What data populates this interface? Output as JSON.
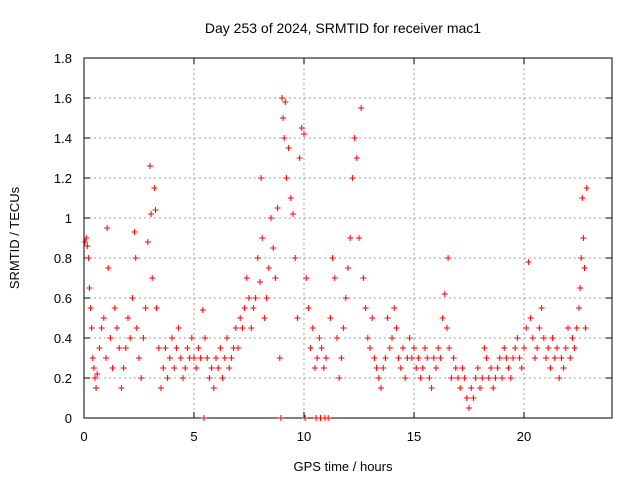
{
  "chart_data": {
    "type": "scatter",
    "title": "Day 253 of 2024, SRMTID for receiver mac1",
    "xlabel": "GPS time / hours",
    "ylabel": "SRMTID / TECUs",
    "xlim": [
      0,
      24
    ],
    "ylim": [
      0,
      1.8
    ],
    "x_ticks": [
      0,
      5,
      10,
      15,
      20
    ],
    "x_tick_labels": [
      "0",
      "5",
      "10",
      "15",
      "20"
    ],
    "y_ticks": [
      0,
      0.2,
      0.4,
      0.6,
      0.8,
      1.0,
      1.2,
      1.4,
      1.6,
      1.8
    ],
    "y_tick_labels": [
      "0",
      "0.2",
      "0.4",
      "0.6",
      "0.8",
      "1",
      "1.2",
      "1.4",
      "1.6",
      "1.8"
    ],
    "grid": true,
    "marker": "+",
    "marker_color": "#ff0000",
    "series": [
      {
        "name": "SRMTID",
        "points": [
          [
            0.05,
            0.88
          ],
          [
            0.1,
            0.9
          ],
          [
            0.15,
            0.86
          ],
          [
            0.2,
            0.8
          ],
          [
            0.25,
            0.65
          ],
          [
            0.3,
            0.55
          ],
          [
            0.35,
            0.45
          ],
          [
            0.4,
            0.3
          ],
          [
            0.45,
            0.25
          ],
          [
            0.5,
            0.2
          ],
          [
            0.55,
            0.15
          ],
          [
            0.6,
            0.22
          ],
          [
            0.7,
            0.35
          ],
          [
            0.8,
            0.45
          ],
          [
            0.9,
            0.5
          ],
          [
            1.0,
            0.3
          ],
          [
            1.05,
            0.95
          ],
          [
            1.1,
            0.75
          ],
          [
            1.2,
            0.4
          ],
          [
            1.3,
            0.25
          ],
          [
            1.4,
            0.55
          ],
          [
            1.5,
            0.45
          ],
          [
            1.6,
            0.35
          ],
          [
            1.7,
            0.15
          ],
          [
            1.8,
            0.25
          ],
          [
            1.9,
            0.35
          ],
          [
            2.0,
            0.5
          ],
          [
            2.1,
            0.4
          ],
          [
            2.2,
            0.6
          ],
          [
            2.3,
            0.93
          ],
          [
            2.35,
            0.8
          ],
          [
            2.4,
            0.45
          ],
          [
            2.5,
            0.3
          ],
          [
            2.6,
            0.2
          ],
          [
            2.7,
            0.4
          ],
          [
            2.8,
            0.55
          ],
          [
            2.9,
            0.88
          ],
          [
            3.0,
            1.26
          ],
          [
            3.05,
            1.02
          ],
          [
            3.1,
            0.7
          ],
          [
            3.2,
            1.15
          ],
          [
            3.25,
            1.04
          ],
          [
            3.3,
            0.55
          ],
          [
            3.4,
            0.35
          ],
          [
            3.5,
            0.15
          ],
          [
            3.6,
            0.25
          ],
          [
            3.7,
            0.35
          ],
          [
            3.8,
            0.2
          ],
          [
            3.9,
            0.3
          ],
          [
            4.0,
            0.4
          ],
          [
            4.1,
            0.25
          ],
          [
            4.2,
            0.35
          ],
          [
            4.3,
            0.45
          ],
          [
            4.4,
            0.3
          ],
          [
            4.5,
            0.2
          ],
          [
            4.6,
            0.25
          ],
          [
            4.7,
            0.35
          ],
          [
            4.8,
            0.3
          ],
          [
            4.9,
            0.4
          ],
          [
            5.0,
            0.3
          ],
          [
            5.1,
            0.25
          ],
          [
            5.2,
            0.35
          ],
          [
            5.3,
            0.3
          ],
          [
            5.4,
            0.54
          ],
          [
            5.45,
            0.0
          ],
          [
            5.5,
            0.4
          ],
          [
            5.6,
            0.3
          ],
          [
            5.7,
            0.2
          ],
          [
            5.8,
            0.25
          ],
          [
            5.9,
            0.15
          ],
          [
            6.0,
            0.3
          ],
          [
            6.1,
            0.25
          ],
          [
            6.2,
            0.35
          ],
          [
            6.3,
            0.2
          ],
          [
            6.4,
            0.3
          ],
          [
            6.5,
            0.4
          ],
          [
            6.6,
            0.25
          ],
          [
            6.7,
            0.3
          ],
          [
            6.8,
            0.35
          ],
          [
            6.9,
            0.45
          ],
          [
            7.0,
            0.35
          ],
          [
            7.1,
            0.5
          ],
          [
            7.2,
            0.45
          ],
          [
            7.3,
            0.55
          ],
          [
            7.4,
            0.7
          ],
          [
            7.5,
            0.6
          ],
          [
            7.6,
            0.45
          ],
          [
            7.7,
            0.55
          ],
          [
            7.8,
            0.6
          ],
          [
            7.9,
            0.8
          ],
          [
            8.0,
            0.68
          ],
          [
            8.05,
            1.2
          ],
          [
            8.1,
            0.9
          ],
          [
            8.2,
            0.5
          ],
          [
            8.3,
            0.6
          ],
          [
            8.4,
            0.75
          ],
          [
            8.5,
            1.0
          ],
          [
            8.6,
            0.85
          ],
          [
            8.7,
            0.7
          ],
          [
            8.8,
            1.05
          ],
          [
            8.9,
            0.3
          ],
          [
            8.95,
            0.0
          ],
          [
            9.0,
            1.6
          ],
          [
            9.05,
            1.5
          ],
          [
            9.1,
            1.4
          ],
          [
            9.15,
            1.58
          ],
          [
            9.2,
            1.2
          ],
          [
            9.3,
            1.35
          ],
          [
            9.4,
            1.1
          ],
          [
            9.5,
            1.02
          ],
          [
            9.6,
            0.8
          ],
          [
            9.7,
            0.5
          ],
          [
            9.8,
            1.3
          ],
          [
            9.9,
            1.45
          ],
          [
            10.0,
            1.42
          ],
          [
            10.05,
            0.0
          ],
          [
            10.1,
            0.7
          ],
          [
            10.2,
            0.55
          ],
          [
            10.3,
            0.35
          ],
          [
            10.4,
            0.45
          ],
          [
            10.5,
            0.25
          ],
          [
            10.55,
            0.0
          ],
          [
            10.6,
            0.3
          ],
          [
            10.7,
            0.4
          ],
          [
            10.75,
            0.0
          ],
          [
            10.8,
            0.35
          ],
          [
            10.9,
            0.25
          ],
          [
            10.95,
            0.0
          ],
          [
            11.0,
            0.3
          ],
          [
            11.1,
            0.0
          ],
          [
            11.2,
            0.5
          ],
          [
            11.3,
            0.8
          ],
          [
            11.4,
            0.7
          ],
          [
            11.5,
            0.4
          ],
          [
            11.6,
            0.2
          ],
          [
            11.7,
            0.3
          ],
          [
            11.8,
            0.45
          ],
          [
            11.9,
            0.6
          ],
          [
            12.0,
            0.75
          ],
          [
            12.1,
            0.9
          ],
          [
            12.2,
            1.2
          ],
          [
            12.3,
            1.4
          ],
          [
            12.4,
            1.3
          ],
          [
            12.5,
            0.9
          ],
          [
            12.6,
            1.55
          ],
          [
            12.7,
            0.7
          ],
          [
            12.8,
            0.55
          ],
          [
            12.9,
            0.4
          ],
          [
            13.0,
            0.35
          ],
          [
            13.1,
            0.5
          ],
          [
            13.2,
            0.3
          ],
          [
            13.3,
            0.25
          ],
          [
            13.4,
            0.2
          ],
          [
            13.5,
            0.15
          ],
          [
            13.6,
            0.25
          ],
          [
            13.7,
            0.3
          ],
          [
            13.8,
            0.5
          ],
          [
            13.9,
            0.35
          ],
          [
            14.0,
            0.4
          ],
          [
            14.1,
            0.55
          ],
          [
            14.2,
            0.45
          ],
          [
            14.3,
            0.3
          ],
          [
            14.4,
            0.25
          ],
          [
            14.5,
            0.35
          ],
          [
            14.6,
            0.2
          ],
          [
            14.7,
            0.3
          ],
          [
            14.8,
            0.4
          ],
          [
            14.9,
            0.3
          ],
          [
            15.0,
            0.35
          ],
          [
            15.1,
            0.25
          ],
          [
            15.2,
            0.3
          ],
          [
            15.3,
            0.2
          ],
          [
            15.4,
            0.25
          ],
          [
            15.5,
            0.35
          ],
          [
            15.6,
            0.3
          ],
          [
            15.7,
            0.2
          ],
          [
            15.8,
            0.15
          ],
          [
            15.9,
            0.3
          ],
          [
            16.0,
            0.25
          ],
          [
            16.1,
            0.35
          ],
          [
            16.2,
            0.3
          ],
          [
            16.3,
            0.5
          ],
          [
            16.4,
            0.62
          ],
          [
            16.5,
            0.45
          ],
          [
            16.55,
            0.8
          ],
          [
            16.6,
            0.35
          ],
          [
            16.7,
            0.2
          ],
          [
            16.8,
            0.3
          ],
          [
            16.9,
            0.25
          ],
          [
            17.0,
            0.2
          ],
          [
            17.1,
            0.15
          ],
          [
            17.2,
            0.25
          ],
          [
            17.3,
            0.2
          ],
          [
            17.4,
            0.1
          ],
          [
            17.5,
            0.05
          ],
          [
            17.6,
            0.15
          ],
          [
            17.7,
            0.1
          ],
          [
            17.8,
            0.2
          ],
          [
            17.9,
            0.25
          ],
          [
            18.0,
            0.15
          ],
          [
            18.1,
            0.2
          ],
          [
            18.2,
            0.35
          ],
          [
            18.3,
            0.3
          ],
          [
            18.4,
            0.2
          ],
          [
            18.5,
            0.25
          ],
          [
            18.6,
            0.15
          ],
          [
            18.7,
            0.2
          ],
          [
            18.8,
            0.25
          ],
          [
            18.9,
            0.3
          ],
          [
            19.0,
            0.2
          ],
          [
            19.1,
            0.35
          ],
          [
            19.2,
            0.3
          ],
          [
            19.3,
            0.25
          ],
          [
            19.4,
            0.2
          ],
          [
            19.5,
            0.3
          ],
          [
            19.6,
            0.35
          ],
          [
            19.7,
            0.4
          ],
          [
            19.8,
            0.3
          ],
          [
            19.9,
            0.25
          ],
          [
            20.0,
            0.35
          ],
          [
            20.1,
            0.45
          ],
          [
            20.2,
            0.78
          ],
          [
            20.3,
            0.5
          ],
          [
            20.4,
            0.4
          ],
          [
            20.5,
            0.3
          ],
          [
            20.6,
            0.35
          ],
          [
            20.7,
            0.45
          ],
          [
            20.8,
            0.55
          ],
          [
            20.9,
            0.4
          ],
          [
            21.0,
            0.3
          ],
          [
            21.1,
            0.35
          ],
          [
            21.2,
            0.25
          ],
          [
            21.3,
            0.4
          ],
          [
            21.4,
            0.3
          ],
          [
            21.5,
            0.35
          ],
          [
            21.6,
            0.2
          ],
          [
            21.7,
            0.3
          ],
          [
            21.8,
            0.25
          ],
          [
            21.9,
            0.35
          ],
          [
            22.0,
            0.45
          ],
          [
            22.1,
            0.3
          ],
          [
            22.2,
            0.4
          ],
          [
            22.3,
            0.35
          ],
          [
            22.4,
            0.45
          ],
          [
            22.5,
            0.55
          ],
          [
            22.55,
            0.65
          ],
          [
            22.6,
            0.8
          ],
          [
            22.65,
            1.1
          ],
          [
            22.7,
            0.9
          ],
          [
            22.75,
            0.75
          ],
          [
            22.8,
            0.45
          ],
          [
            22.85,
            1.15
          ]
        ]
      }
    ]
  }
}
